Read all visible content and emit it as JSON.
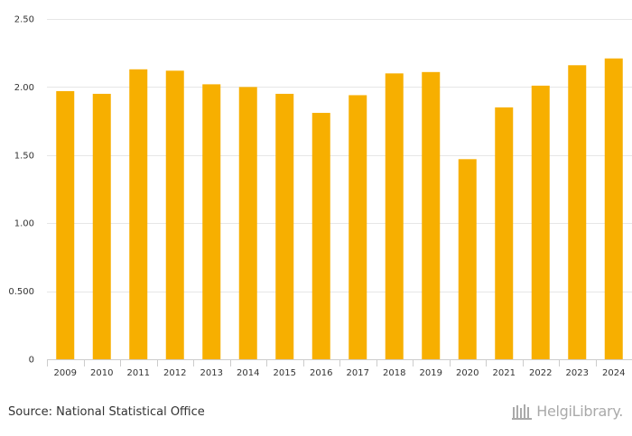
{
  "chart_data": {
    "type": "bar",
    "title": "",
    "xlabel": "",
    "ylabel": "",
    "ylim": [
      0,
      2.5
    ],
    "y_ticks": [
      {
        "value": 0,
        "label": "0"
      },
      {
        "value": 0.5,
        "label": "0.500"
      },
      {
        "value": 1.0,
        "label": "1.00"
      },
      {
        "value": 1.5,
        "label": "1.50"
      },
      {
        "value": 2.0,
        "label": "2.00"
      },
      {
        "value": 2.5,
        "label": "2.50"
      }
    ],
    "categories": [
      "2009",
      "2010",
      "2011",
      "2012",
      "2013",
      "2014",
      "2015",
      "2016",
      "2017",
      "2018",
      "2019",
      "2020",
      "2021",
      "2022",
      "2023",
      "2024"
    ],
    "values": [
      1.97,
      1.95,
      2.13,
      2.12,
      2.02,
      2.0,
      1.95,
      1.81,
      1.94,
      2.1,
      2.11,
      1.47,
      1.85,
      2.01,
      2.16,
      2.21
    ],
    "grid": true,
    "legend": "none",
    "bar_color": "#F7AF00",
    "grid_color": "#E6E6E6",
    "axis_color": "#CCCCCC"
  },
  "footer": {
    "source": "Source: National Statistical Office",
    "brand": "HelgiLibrary."
  }
}
